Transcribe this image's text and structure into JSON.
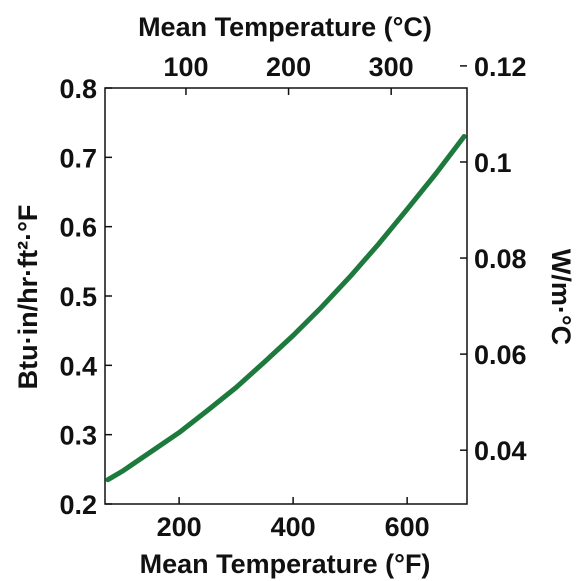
{
  "chart_data": {
    "type": "line",
    "title": "",
    "xlabel": "Mean Temperature (°F)",
    "ylabel": "Btu·in/hr·ft²·°F",
    "x2label": "Mean Temperature (°C)",
    "y2label": "W/m·°C",
    "xlim": [
      70,
      705
    ],
    "ylim": [
      0.2,
      0.8
    ],
    "x2lim": [
      21.1,
      373.9
    ],
    "y2lim": [
      0.0288,
      0.1154
    ],
    "xticks": [
      200,
      400,
      600
    ],
    "yticks": [
      0.2,
      0.3,
      0.4,
      0.5,
      0.6,
      0.7,
      0.8
    ],
    "x2ticks": [
      100,
      200,
      300
    ],
    "y2ticks": [
      0.04,
      0.06,
      0.08,
      0.1,
      0.12
    ],
    "x_tick_labels": [
      "200",
      "400",
      "600"
    ],
    "y_tick_labels": [
      "0.2",
      "0.3",
      "0.4",
      "0.5",
      "0.6",
      "0.7",
      "0.8"
    ],
    "x2_tick_labels": [
      "100",
      "200",
      "300"
    ],
    "y2_tick_labels": [
      "0.04",
      "0.06",
      "0.08",
      "0.1",
      "0.12"
    ],
    "grid": false,
    "legend": "none",
    "line_color": "#1e7a3c",
    "series": [
      {
        "x": [
          75,
          100,
          150,
          200,
          250,
          300,
          350,
          400,
          450,
          500,
          550,
          600,
          650,
          700
        ],
        "y": [
          0.235,
          0.247,
          0.275,
          0.303,
          0.335,
          0.368,
          0.405,
          0.443,
          0.484,
          0.528,
          0.575,
          0.625,
          0.676,
          0.73
        ]
      }
    ]
  }
}
